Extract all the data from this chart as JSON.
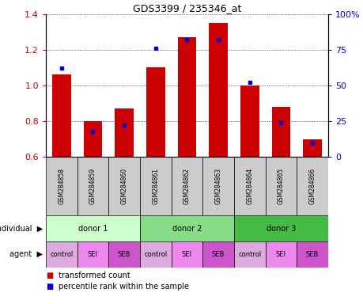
{
  "title": "GDS3399 / 235346_at",
  "samples": [
    "GSM284858",
    "GSM284859",
    "GSM284860",
    "GSM284861",
    "GSM284862",
    "GSM284863",
    "GSM284864",
    "GSM284865",
    "GSM284866"
  ],
  "transformed_count": [
    1.06,
    0.8,
    0.87,
    1.1,
    1.27,
    1.35,
    1.0,
    0.88,
    0.7
  ],
  "percentile_rank": [
    62,
    18,
    22,
    76,
    82,
    82,
    52,
    24,
    10
  ],
  "ylim": [
    0.6,
    1.4
  ],
  "yticks": [
    0.6,
    0.8,
    1.0,
    1.2,
    1.4
  ],
  "y2ticks": [
    0,
    25,
    50,
    75,
    100
  ],
  "y2labels": [
    "0",
    "25",
    "50",
    "75",
    "100%"
  ],
  "bar_color": "#cc0000",
  "dot_color": "#0000cc",
  "grid_color": "#000000",
  "individual_labels": [
    "donor 1",
    "donor 2",
    "donor 3"
  ],
  "individual_colors": [
    "#ccffcc",
    "#88dd88",
    "#44bb44"
  ],
  "agent_labels": [
    "control",
    "SEI",
    "SEB",
    "control",
    "SEI",
    "SEB",
    "control",
    "SEI",
    "SEB"
  ],
  "agent_bg_colors": [
    "#ddaadd",
    "#ee88ee",
    "#dd66dd",
    "#ddaadd",
    "#ee88ee",
    "#dd66dd",
    "#ddaadd",
    "#ee88ee",
    "#dd66dd"
  ],
  "sample_bg_color": "#cccccc",
  "left_label_color": "#cc0000",
  "right_label_color": "#0000cc",
  "legend_red_label": "transformed count",
  "legend_blue_label": "percentile rank within the sample"
}
